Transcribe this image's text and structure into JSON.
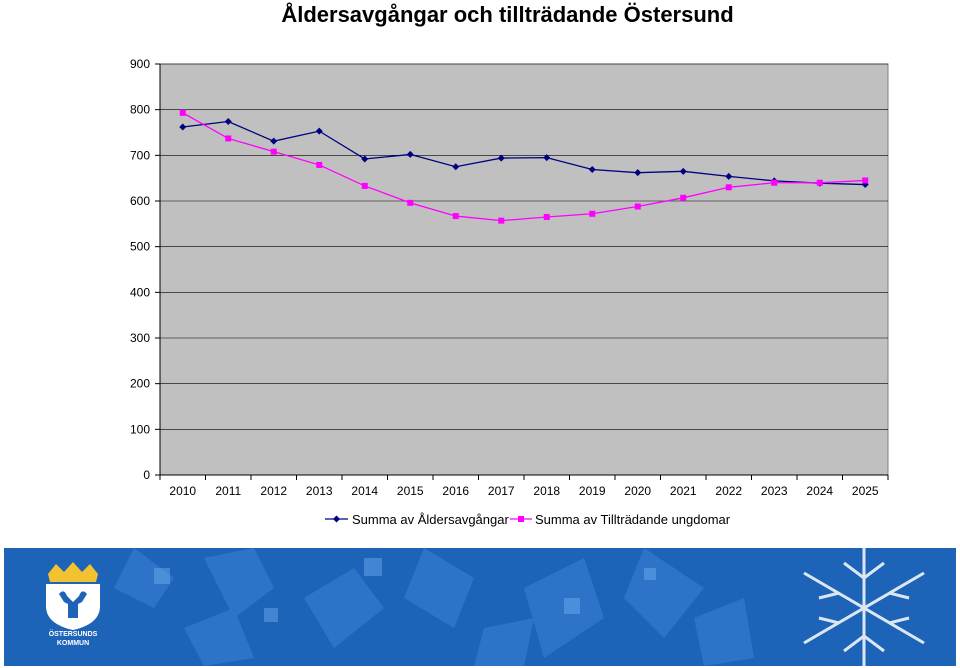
{
  "chart_data": {
    "type": "line",
    "title": "Åldersavgångar och tillträdande Östersund",
    "xlabel": "",
    "ylabel": "",
    "categories": [
      "2010",
      "2011",
      "2012",
      "2013",
      "2014",
      "2015",
      "2016",
      "2017",
      "2018",
      "2019",
      "2020",
      "2021",
      "2022",
      "2023",
      "2024",
      "2025"
    ],
    "ylim": [
      0,
      900
    ],
    "yticks": [
      0,
      100,
      200,
      300,
      400,
      500,
      600,
      700,
      800,
      900
    ],
    "grid": true,
    "legend_position": "bottom",
    "series": [
      {
        "name": "Summa av Åldersavgångar",
        "color": "#000080",
        "marker": "diamond",
        "values": [
          762,
          774,
          731,
          753,
          692,
          702,
          675,
          694,
          695,
          669,
          662,
          665,
          654,
          644,
          639,
          636
        ]
      },
      {
        "name": "Summa av Tillträdande ungdomar",
        "color": "#ff00ff",
        "marker": "square",
        "values": [
          793,
          737,
          708,
          679,
          633,
          596,
          567,
          557,
          565,
          572,
          588,
          607,
          630,
          640,
          640,
          645
        ]
      }
    ]
  },
  "footer": {
    "logo_line1": "ÖSTERSUNDS",
    "logo_line2": "KOMMUN"
  },
  "colors": {
    "plot_bg": "#c0c0c0",
    "gridline": "#000000",
    "footer_bg": "#1d63b8"
  }
}
